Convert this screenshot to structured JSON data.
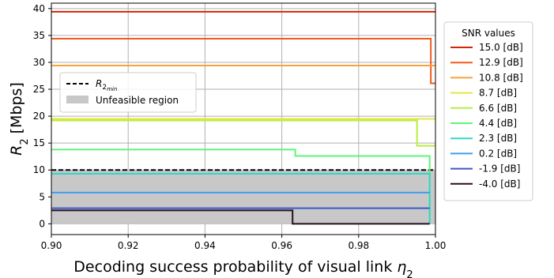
{
  "chart_data": {
    "type": "line",
    "xlabel": "Decoding success probability of visual link",
    "xlabel_symbol": "η",
    "xlabel_sub": "2",
    "ylabel": "R",
    "ylabel_sub": "2",
    "ylabel_unit": "[Mbps]",
    "xlim": [
      0.9,
      1.0
    ],
    "ylim": [
      -2,
      41
    ],
    "xticks": [
      "0.90",
      "0.92",
      "0.94",
      "0.96",
      "0.98",
      "1.00"
    ],
    "yticks": [
      "0",
      "5",
      "10",
      "15",
      "20",
      "25",
      "30",
      "35",
      "40"
    ],
    "grid": true,
    "legend_main": {
      "placement": "center-left",
      "entries": [
        {
          "label": "R",
          "sub": "2",
          "subsub": "min",
          "style": "dashed"
        },
        {
          "label": "Unfeasible region",
          "style": "patch"
        }
      ]
    },
    "threshold_rmin": 10.0,
    "unfeasible_region": {
      "y_from": 0,
      "y_to": 10,
      "color": "#c8c8c8"
    },
    "legend_snr": {
      "title": "SNR values",
      "placement": "outside-right"
    },
    "series": [
      {
        "name": "15.0 [dB]",
        "color": "#d4240a",
        "x": [
          0.9,
          1.0
        ],
        "y": [
          39.4,
          39.4
        ]
      },
      {
        "name": "12.9 [dB]",
        "color": "#f05b1e",
        "x": [
          0.9,
          0.9988,
          0.9988,
          1.0
        ],
        "y": [
          34.4,
          34.4,
          26.1,
          26.1
        ]
      },
      {
        "name": "10.8 [dB]",
        "color": "#f8a23a",
        "x": [
          0.9,
          1.0
        ],
        "y": [
          29.4,
          29.4
        ]
      },
      {
        "name": "8.7 [dB]",
        "color": "#e6e446",
        "x": [
          0.9,
          1.0
        ],
        "y": [
          19.5,
          19.5
        ]
      },
      {
        "name": "6.6 [dB]",
        "color": "#b6ef3e",
        "x": [
          0.9,
          0.9952,
          0.9952,
          1.0
        ],
        "y": [
          19.2,
          19.2,
          14.5,
          14.5
        ]
      },
      {
        "name": "4.4 [dB]",
        "color": "#5ef57a",
        "x": [
          0.9,
          0.9635,
          0.9635,
          0.9985,
          0.9985
        ],
        "y": [
          13.8,
          13.8,
          12.6,
          12.6,
          0
        ]
      },
      {
        "name": "2.3 [dB]",
        "color": "#2fd7c8",
        "x": [
          0.9,
          0.9985,
          0.9985
        ],
        "y": [
          9.3,
          9.3,
          0
        ]
      },
      {
        "name": "0.2 [dB]",
        "color": "#3e9ef0",
        "x": [
          0.9,
          0.9985
        ],
        "y": [
          5.8,
          5.8
        ]
      },
      {
        "name": "-1.9 [dB]",
        "color": "#3c58c8",
        "x": [
          0.9,
          0.9985
        ],
        "y": [
          2.9,
          2.9
        ]
      },
      {
        "name": "-4.0 [dB]",
        "color": "#2a0f20",
        "x": [
          0.9,
          0.9628,
          0.9628,
          0.9985
        ],
        "y": [
          2.5,
          2.5,
          0,
          0
        ]
      }
    ]
  }
}
